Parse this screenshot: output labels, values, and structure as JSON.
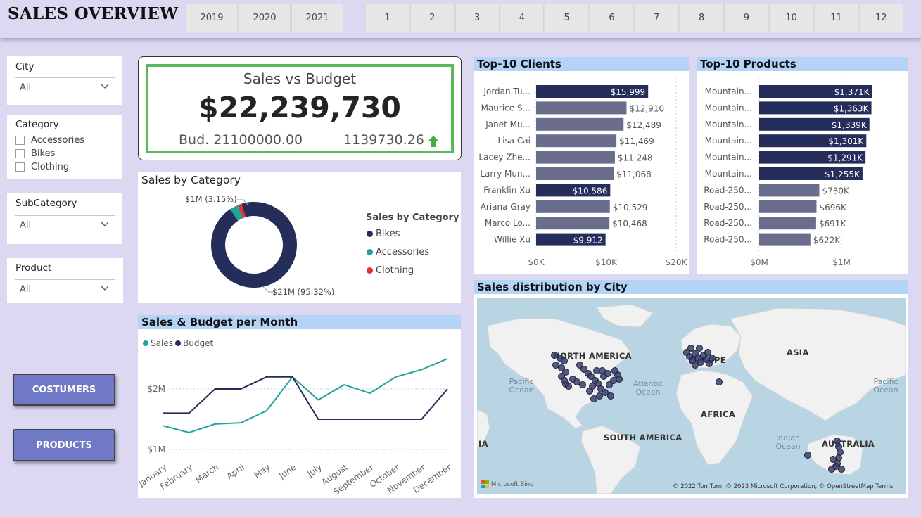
{
  "header": {
    "title": "SALES OVERVIEW",
    "years": [
      "2019",
      "2020",
      "2021"
    ],
    "months": [
      "1",
      "2",
      "3",
      "4",
      "5",
      "6",
      "7",
      "8",
      "9",
      "10",
      "11",
      "12"
    ]
  },
  "filters": {
    "city": {
      "label": "City",
      "value": "All"
    },
    "category": {
      "label": "Category",
      "options": [
        "Accessories",
        "Bikes",
        "Clothing"
      ]
    },
    "subcategory": {
      "label": "SubCategory",
      "value": "All"
    },
    "product": {
      "label": "Product",
      "value": "All"
    }
  },
  "nav": {
    "customers_label": "COSTUMERS",
    "products_label": "PRODUCTS"
  },
  "kpi": {
    "title": "Sales vs Budget",
    "value": "$22,239,730",
    "budget_label": "Bud. 21100000.00",
    "diff": "1139730.26",
    "trend_color": "#3fae49"
  },
  "sales_by_category": {
    "title": "Sales by Category",
    "legend_title": "Sales by Category",
    "label_small": "$1M (3.15%)",
    "label_big": "$21M (95.32%)",
    "chart_data": {
      "type": "pie",
      "title": "Sales by Category",
      "categories": [
        "Bikes",
        "Accessories",
        "Clothing"
      ],
      "values": [
        95.32,
        3.15,
        1.53
      ],
      "colors": [
        "#252e5a",
        "#20a39a",
        "#e0312c"
      ]
    }
  },
  "monthly": {
    "title": "Sales & Budget per Month",
    "legend": [
      "Sales",
      "Budget"
    ],
    "y_ticks": [
      "$2M",
      "$1M"
    ],
    "chart_data": {
      "type": "line",
      "title": "Sales & Budget per Month",
      "categories": [
        "January",
        "February",
        "March",
        "April",
        "May",
        "June",
        "July",
        "August",
        "September",
        "October",
        "November",
        "December"
      ],
      "series": [
        {
          "name": "Sales",
          "color": "#20a39a",
          "values": [
            1.39,
            1.28,
            1.42,
            1.44,
            1.64,
            2.2,
            1.82,
            2.07,
            1.93,
            2.2,
            2.32,
            2.5
          ]
        },
        {
          "name": "Budget",
          "color": "#252e5a",
          "values": [
            1.6,
            1.6,
            2.0,
            2.0,
            2.2,
            2.2,
            1.5,
            1.5,
            1.5,
            1.5,
            1.5,
            2.0
          ]
        }
      ],
      "ylim": [
        1.0,
        2.6
      ]
    }
  },
  "top_clients": {
    "title": "Top-10 Clients",
    "x_ticks": [
      "$0K",
      "$10K",
      "$20K"
    ],
    "chart_data": {
      "type": "bar",
      "title": "Top-10 Clients",
      "categories": [
        "Jordan Tu...",
        "Maurice S...",
        "Janet Mu...",
        "Lisa Cai",
        "Lacey Zhe...",
        "Larry Mun...",
        "Franklin Xu",
        "Ariana Gray",
        "Marco Lo...",
        "Willie Xu"
      ],
      "values": [
        15999,
        12910,
        12489,
        11469,
        11248,
        11068,
        10586,
        10529,
        10468,
        9912
      ],
      "labels": [
        "$15,999",
        "$12,910",
        "$12,489",
        "$11,469",
        "$11,248",
        "$11,068",
        "$10,586",
        "$10,529",
        "$10,468",
        "$9,912"
      ],
      "highlighted": [
        true,
        false,
        false,
        false,
        false,
        false,
        true,
        false,
        false,
        true
      ],
      "xlim": [
        0,
        20000
      ]
    }
  },
  "top_products": {
    "title": "Top-10 Products",
    "x_ticks": [
      "$0M",
      "$1M"
    ],
    "chart_data": {
      "type": "bar",
      "title": "Top-10 Products",
      "categories": [
        "Mountain...",
        "Mountain...",
        "Mountain...",
        "Mountain...",
        "Mountain...",
        "Mountain...",
        "Road-250...",
        "Road-250...",
        "Road-250...",
        "Road-250..."
      ],
      "values": [
        1371,
        1363,
        1339,
        1301,
        1291,
        1255,
        730,
        696,
        691,
        622
      ],
      "labels": [
        "$1,371K",
        "$1,363K",
        "$1,339K",
        "$1,301K",
        "$1,291K",
        "$1,255K",
        "$730K",
        "$696K",
        "$691K",
        "$622K"
      ],
      "highlighted": [
        true,
        true,
        true,
        true,
        true,
        true,
        false,
        false,
        false,
        false
      ],
      "xlim": [
        0,
        1700
      ]
    }
  },
  "map": {
    "title": "Sales distribution by City",
    "continents": [
      "NORTH AMERICA",
      "SOUTH AMERICA",
      "EUROPE",
      "AFRICA",
      "ASIA",
      "AUSTRALIA"
    ],
    "asia_edge_label": "IA",
    "oceans": [
      "Pacific Ocean",
      "Atlantic Ocean",
      "Indian Ocean",
      "Pacific Ocean"
    ],
    "bing": "Microsoft Bing",
    "attribution": "© 2022 TomTom, © 2023 Microsoft Corporation, © OpenStreetMap  Terms"
  },
  "colors": {
    "navy": "#252e5a",
    "slate": "#6a6d8c",
    "teal": "#20a39a",
    "red": "#e0312c",
    "title_bg": "#b3d4f6"
  }
}
